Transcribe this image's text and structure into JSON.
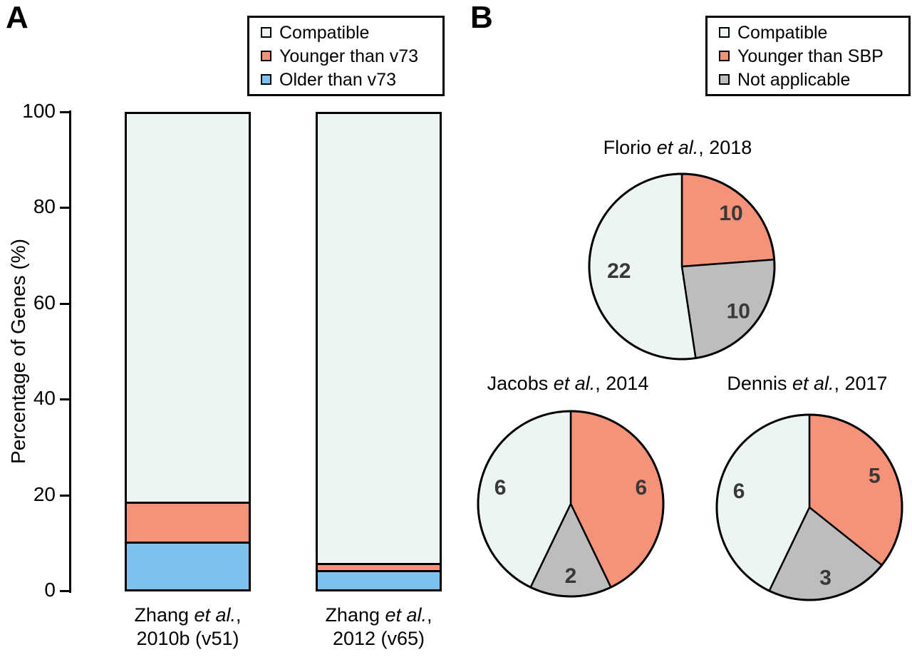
{
  "figure": {
    "panel_a_label": "A",
    "panel_b_label": "B"
  },
  "colors": {
    "compatible": "#ecf5ef",
    "younger": "#f5927a",
    "older_blue": "#7cc2ec",
    "not_applicable_gray": "#bdbdbd",
    "outline": "#000000",
    "pie_value_text": "#383838"
  },
  "legend_a": {
    "items": [
      {
        "label": "Compatible",
        "color": "#ecf5ef"
      },
      {
        "label": "Younger than v73",
        "color": "#f5927a"
      },
      {
        "label": "Older than v73",
        "color": "#7cc2ec"
      }
    ]
  },
  "legend_b": {
    "items": [
      {
        "label": "Compatible",
        "color": "#ecf5ef"
      },
      {
        "label": "Younger than SBP",
        "color": "#f5927a"
      },
      {
        "label": "Not applicable",
        "color": "#bdbdbd"
      }
    ]
  },
  "chart_data": [
    {
      "type": "bar",
      "subtype": "stacked_percentage",
      "title": "",
      "xlabel": "",
      "ylabel": "Percentage of Genes (%)",
      "ylim": [
        0,
        100
      ],
      "yticks": [
        0,
        20,
        40,
        60,
        80,
        100
      ],
      "grid": false,
      "legend_position": "top-right",
      "categories": [
        {
          "line1_pre": "Zhang ",
          "line1_italic": "et al.",
          "line1_post": ",",
          "line2": "2010b (v51)"
        },
        {
          "line1_pre": "Zhang ",
          "line1_italic": "et al.",
          "line1_post": ",",
          "line2": "2012 (v65)"
        }
      ],
      "series": [
        {
          "name": "Compatible",
          "color": "#ecf5ef",
          "values": [
            82,
            95
          ]
        },
        {
          "name": "Younger than v73",
          "color": "#f5927a",
          "values": [
            8,
            1
          ]
        },
        {
          "name": "Older than v73",
          "color": "#7cc2ec",
          "values": [
            10,
            4
          ]
        }
      ]
    },
    {
      "type": "pie",
      "title_pre": "Florio ",
      "title_italic": "et al.",
      "title_post": ", 2018",
      "start": "top",
      "direction": "clockwise",
      "slices": [
        {
          "name": "Younger than SBP",
          "value": 10,
          "color": "#f5927a"
        },
        {
          "name": "Not applicable",
          "value": 10,
          "color": "#bdbdbd"
        },
        {
          "name": "Compatible",
          "value": 22,
          "color": "#ecf5ef"
        }
      ]
    },
    {
      "type": "pie",
      "title_pre": "Jacobs ",
      "title_italic": "et al.",
      "title_post": ", 2014",
      "start": "top",
      "direction": "clockwise",
      "slices": [
        {
          "name": "Younger than SBP",
          "value": 6,
          "color": "#f5927a"
        },
        {
          "name": "Not applicable",
          "value": 2,
          "color": "#bdbdbd"
        },
        {
          "name": "Compatible",
          "value": 6,
          "color": "#ecf5ef"
        }
      ]
    },
    {
      "type": "pie",
      "title_pre": "Dennis ",
      "title_italic": "et al.",
      "title_post": ", 2017",
      "start": "top",
      "direction": "clockwise",
      "slices": [
        {
          "name": "Younger than SBP",
          "value": 5,
          "color": "#f5927a"
        },
        {
          "name": "Not applicable",
          "value": 3,
          "color": "#bdbdbd"
        },
        {
          "name": "Compatible",
          "value": 6,
          "color": "#ecf5ef"
        }
      ]
    }
  ]
}
